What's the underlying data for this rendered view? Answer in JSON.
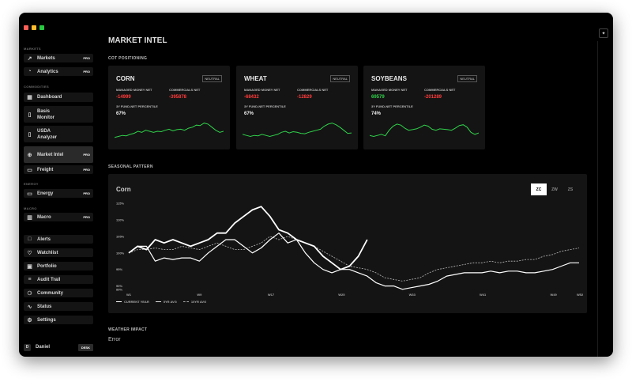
{
  "sidebar": {
    "sections": {
      "markets": "MARKETS",
      "commodities": "COMMODITIES",
      "energy": "ENERGY",
      "macro": "MACRO"
    },
    "items": [
      {
        "label": "Markets",
        "pro": "PRO",
        "icon": "chart-line-icon"
      },
      {
        "label": "Analytics",
        "pro": "PRO",
        "icon": "gauge-icon"
      },
      {
        "label": "Dashboard",
        "pro": "",
        "icon": "grid-icon"
      },
      {
        "label": "Basis Monitor",
        "pro": "",
        "icon": "document-icon"
      },
      {
        "label": "USDA Analyzer",
        "pro": "",
        "icon": "document-icon"
      },
      {
        "label": "Market Intel",
        "pro": "PRO",
        "icon": "globe-icon"
      },
      {
        "label": "Freight",
        "pro": "PRO",
        "icon": "truck-icon"
      },
      {
        "label": "Energy",
        "pro": "PRO",
        "icon": "battery-icon"
      },
      {
        "label": "Macro",
        "pro": "PRO",
        "icon": "building-icon"
      },
      {
        "label": "Alerts",
        "pro": "",
        "icon": "bell-icon"
      },
      {
        "label": "Watchlist",
        "pro": "",
        "icon": "heart-icon"
      },
      {
        "label": "Portfolio",
        "pro": "",
        "icon": "briefcase-icon"
      },
      {
        "label": "Audit Trail",
        "pro": "",
        "icon": "list-icon"
      },
      {
        "label": "Community",
        "pro": "",
        "icon": "users-icon"
      },
      {
        "label": "Status",
        "pro": "",
        "icon": "pulse-icon"
      },
      {
        "label": "Settings",
        "pro": "",
        "icon": "sliders-icon"
      }
    ],
    "user": {
      "initial": "D",
      "name": "Daniel",
      "badge": "DESK"
    }
  },
  "page": {
    "title": "MARKET INTEL",
    "cot_heading": "COT POSITIONING",
    "seasonal_heading": "SEASONAL PATTERN",
    "weather_heading": "WEATHER IMPACT",
    "weather_error": "Error"
  },
  "cards": [
    {
      "title": "CORN",
      "badge": "NEUTRAL",
      "mm_label": "MANAGED MONEY NET",
      "mm_value": "-14999",
      "comm_label": "COMMERCIALS NET",
      "comm_value": "-395878",
      "pct_label": "3Y FUND-NET PERCENTILE",
      "pct_value": "67%",
      "percentile": 0.67
    },
    {
      "title": "WHEAT",
      "badge": "NEUTRAL",
      "mm_label": "MANAGED MONEY NET",
      "mm_value": "-68432",
      "comm_label": "COMMERCIALS NET",
      "comm_value": "-12829",
      "pct_label": "3Y FUND-NET PERCENTILE",
      "pct_value": "67%",
      "percentile": 0.67
    },
    {
      "title": "SOYBEANS",
      "badge": "NEUTRAL",
      "mm_label": "MANAGED MONEY NET",
      "mm_value": "69579",
      "comm_label": "COMMERCIALS NET",
      "comm_value": "-201289",
      "pct_label": "3Y FUND-NET PERCENTILE",
      "pct_value": "74%",
      "percentile": 0.74
    }
  ],
  "colors": {
    "positive": "#2fd24a",
    "negative": "#ff3b3b",
    "accent_line": "#2fd24a"
  },
  "seasonal": {
    "title": "Corn",
    "tabs": [
      {
        "label": "ZC",
        "active": true
      },
      {
        "label": "ZW",
        "active": false
      },
      {
        "label": "ZS",
        "active": false
      }
    ]
  },
  "chart_data": {
    "type": "line",
    "title": "Corn",
    "ylim": [
      88,
      115
    ],
    "yticks": [
      "115%",
      "110%",
      "105%",
      "100%",
      "95%",
      "90%",
      "89%"
    ],
    "ytick_values": [
      115,
      110,
      105,
      100,
      95,
      90,
      89
    ],
    "xlim": [
      1,
      52
    ],
    "xticks": [
      "W1",
      "W9",
      "W17",
      "W25",
      "W33",
      "W41",
      "W49",
      "W52"
    ],
    "xtick_values": [
      1,
      9,
      17,
      25,
      33,
      41,
      49,
      52
    ],
    "legend": [
      "CURRENT YEAR",
      "5YR AVG",
      "10YR AVG"
    ],
    "series": [
      {
        "name": "CURRENT YEAR",
        "style": "solid-bold",
        "x": [
          1,
          2,
          3,
          4,
          5,
          6,
          7,
          8,
          9,
          10,
          11,
          12,
          13,
          14,
          15,
          16,
          17,
          18,
          19,
          20,
          21,
          22,
          23,
          24,
          25,
          26,
          27,
          28
        ],
        "values": [
          100,
          102,
          101,
          104,
          103,
          104,
          103,
          102,
          103,
          104,
          106,
          106,
          109,
          111,
          113,
          114,
          111,
          107,
          106,
          104,
          103,
          102,
          99,
          97,
          95,
          96,
          99,
          104
        ]
      },
      {
        "name": "5YR AVG",
        "style": "solid",
        "x": [
          1,
          2,
          3,
          4,
          5,
          6,
          7,
          8,
          9,
          10,
          11,
          12,
          13,
          14,
          15,
          16,
          17,
          18,
          19,
          20,
          21,
          22,
          23,
          24,
          25,
          26,
          27,
          28,
          29,
          30,
          31,
          32,
          33,
          34,
          35,
          36,
          37,
          38,
          39,
          40,
          41,
          42,
          43,
          44,
          45,
          46,
          47,
          48,
          49,
          50,
          51,
          52
        ],
        "values": [
          100,
          102,
          102,
          97.5,
          98.5,
          98,
          98.5,
          98.5,
          97.5,
          100,
          102,
          104,
          104,
          102,
          100,
          101.5,
          104,
          106,
          103,
          104,
          100,
          97,
          95,
          94,
          95,
          95,
          94,
          93,
          91,
          90,
          90,
          89,
          89.5,
          90,
          90.5,
          91.5,
          93,
          93.5,
          94,
          94,
          94,
          94.5,
          94,
          94.5,
          94.5,
          94,
          94,
          94.5,
          95,
          96,
          97,
          97
        ]
      },
      {
        "name": "10YR AVG",
        "style": "dashed",
        "x": [
          1,
          2,
          3,
          4,
          5,
          6,
          7,
          8,
          9,
          10,
          11,
          12,
          13,
          14,
          15,
          16,
          17,
          18,
          19,
          20,
          21,
          22,
          23,
          24,
          25,
          26,
          27,
          28,
          29,
          30,
          31,
          32,
          33,
          34,
          35,
          36,
          37,
          38,
          39,
          40,
          41,
          42,
          43,
          44,
          45,
          46,
          47,
          48,
          49,
          50,
          51,
          52
        ],
        "values": [
          100,
          101,
          101,
          101.5,
          101,
          101,
          102,
          101.5,
          101,
          102,
          103,
          102,
          101,
          101,
          102,
          103,
          105,
          104,
          105,
          104,
          103,
          102,
          100.5,
          99,
          97.5,
          96,
          95.5,
          95,
          94,
          92.5,
          92,
          91.5,
          92,
          92.5,
          94,
          95,
          95.5,
          96,
          96.5,
          97,
          97,
          97.5,
          97,
          97.5,
          97.5,
          98,
          98,
          99,
          99.5,
          100.5,
          101,
          101.5
        ]
      }
    ]
  }
}
